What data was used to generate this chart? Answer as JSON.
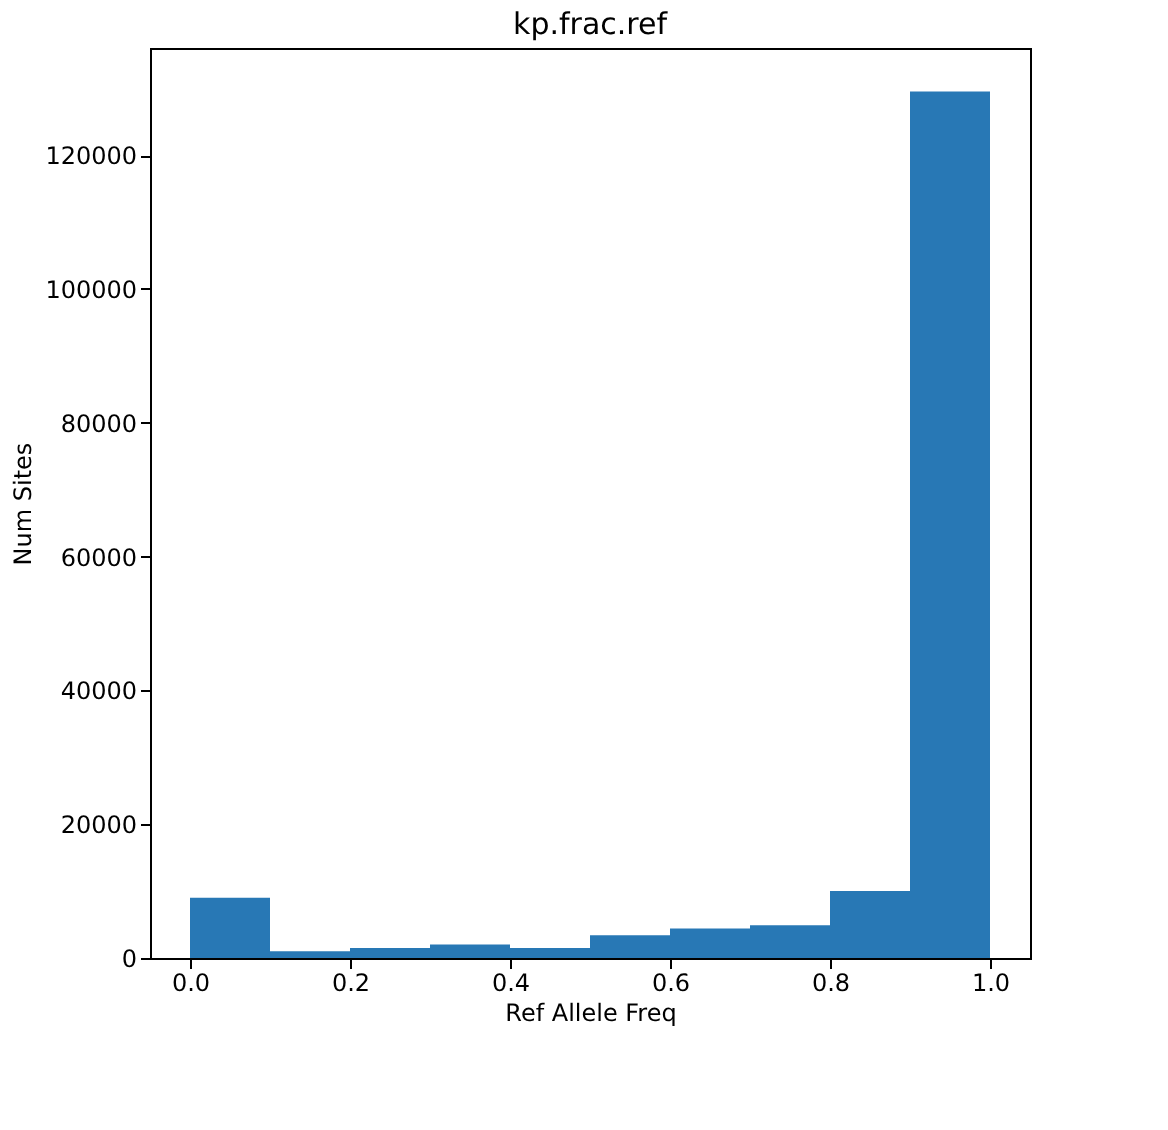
{
  "chart_data": {
    "type": "histogram",
    "title": "kp.frac.ref",
    "xlabel": "Ref Allele Freq",
    "ylabel": "Num Sites",
    "bins": [
      0.0,
      0.1,
      0.2,
      0.3,
      0.4,
      0.5,
      0.6,
      0.7,
      0.8,
      0.9,
      1.0
    ],
    "values": [
      9000,
      1000,
      1500,
      2000,
      1500,
      3400,
      4400,
      4900,
      10000,
      129500
    ],
    "color": "#2878b5",
    "xlim": [
      -0.05,
      1.05
    ],
    "xticks": [
      {
        "value": 0,
        "label": "0.0"
      },
      0.2,
      0.4,
      0.6,
      0.8,
      {
        "value": 1,
        "label": "1.0"
      }
    ],
    "ylim": [
      0,
      136000
    ],
    "yticks": [
      0,
      20000,
      40000,
      60000,
      80000,
      100000,
      120000
    ],
    "grid": false
  }
}
